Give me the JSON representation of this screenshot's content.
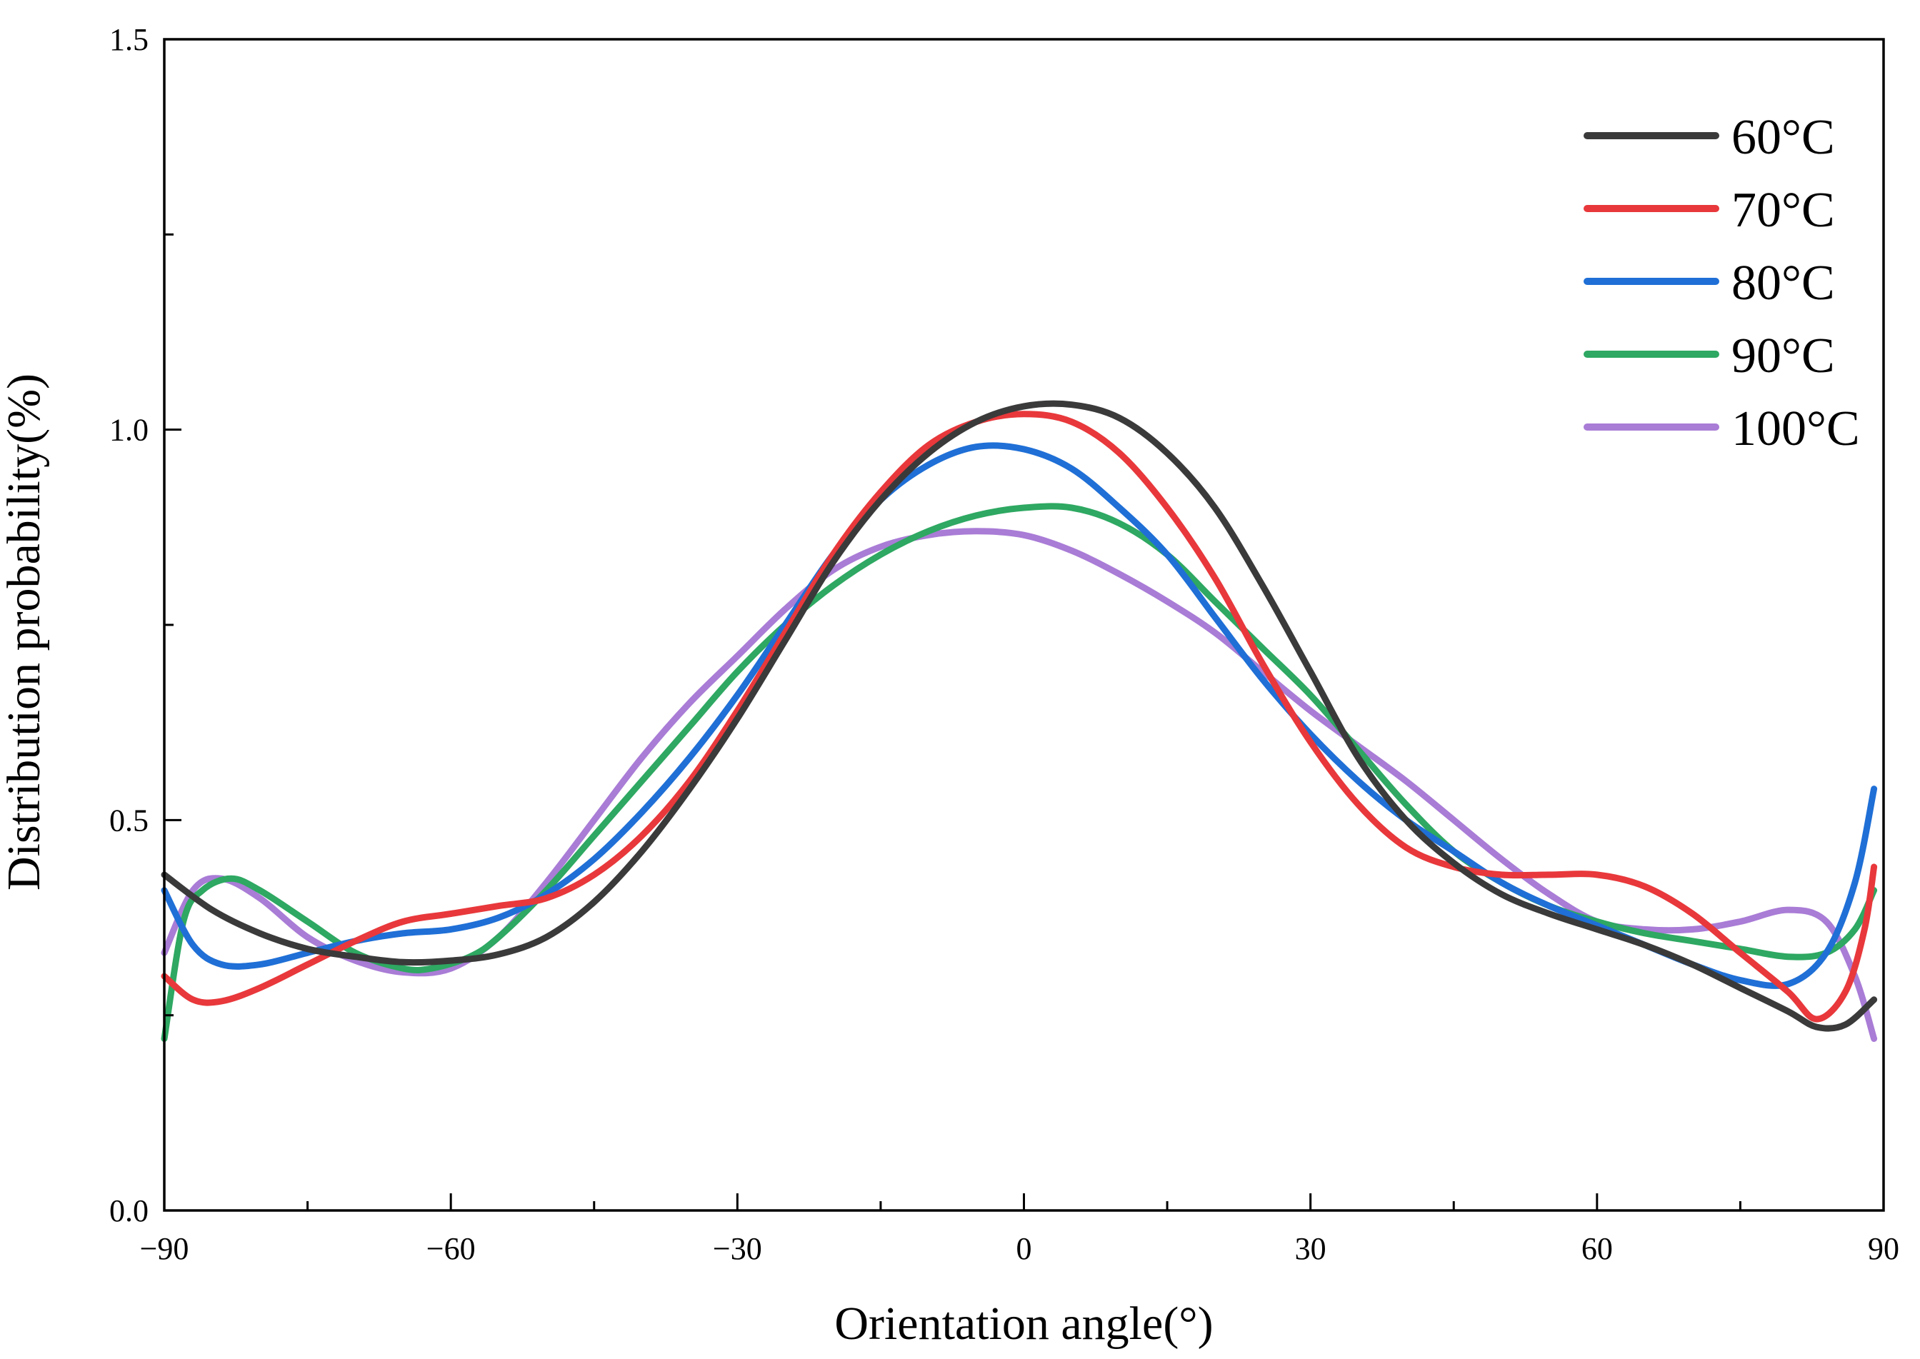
{
  "chart_data": {
    "type": "line",
    "title": "",
    "xlabel": "Orientation angle(°)",
    "ylabel": "Distribution probability(%)",
    "xlim": [
      -90,
      90
    ],
    "ylim": [
      0,
      1.5
    ],
    "x_ticks": [
      -90,
      -60,
      -30,
      0,
      30,
      60,
      90
    ],
    "x_tick_labels": [
      "−90",
      "−60",
      "−30",
      "0",
      "30",
      "60",
      "90"
    ],
    "y_ticks": [
      0,
      0.5,
      1.0,
      1.5
    ],
    "y_tick_labels": [
      "0.0",
      "0.5",
      "1.0",
      "1.5"
    ],
    "x_minor_step": 15,
    "y_minor_step": 0.25,
    "grid": false,
    "legend_position": "top-right",
    "series": [
      {
        "name": "60°C",
        "color": "#3a3a3a",
        "x": [
          -90,
          -85,
          -80,
          -75,
          -70,
          -65,
          -60,
          -55,
          -50,
          -45,
          -40,
          -35,
          -30,
          -25,
          -20,
          -15,
          -10,
          -5,
          0,
          5,
          10,
          15,
          20,
          25,
          30,
          35,
          40,
          45,
          50,
          55,
          60,
          65,
          70,
          75,
          80,
          83,
          86,
          89
        ],
        "values": [
          0.43,
          0.385,
          0.355,
          0.335,
          0.325,
          0.318,
          0.32,
          0.328,
          0.35,
          0.395,
          0.46,
          0.54,
          0.63,
          0.73,
          0.83,
          0.91,
          0.97,
          1.01,
          1.03,
          1.032,
          1.015,
          0.97,
          0.9,
          0.8,
          0.69,
          0.58,
          0.5,
          0.445,
          0.405,
          0.38,
          0.36,
          0.34,
          0.315,
          0.285,
          0.255,
          0.235,
          0.238,
          0.27
        ]
      },
      {
        "name": "70°C",
        "color": "#e8383b",
        "x": [
          -90,
          -87,
          -84,
          -80,
          -75,
          -70,
          -65,
          -60,
          -55,
          -50,
          -45,
          -40,
          -35,
          -30,
          -25,
          -20,
          -15,
          -10,
          -5,
          0,
          5,
          10,
          15,
          20,
          25,
          30,
          35,
          40,
          45,
          50,
          55,
          60,
          65,
          70,
          75,
          80,
          83,
          86,
          88,
          89
        ],
        "values": [
          0.3,
          0.27,
          0.268,
          0.285,
          0.315,
          0.345,
          0.37,
          0.38,
          0.39,
          0.4,
          0.43,
          0.48,
          0.55,
          0.64,
          0.74,
          0.84,
          0.92,
          0.98,
          1.01,
          1.02,
          1.01,
          0.97,
          0.9,
          0.81,
          0.7,
          0.6,
          0.52,
          0.465,
          0.44,
          0.43,
          0.43,
          0.43,
          0.415,
          0.38,
          0.33,
          0.28,
          0.245,
          0.28,
          0.36,
          0.44
        ]
      },
      {
        "name": "80°C",
        "color": "#1f6fd6",
        "x": [
          -90,
          -87,
          -84,
          -80,
          -75,
          -70,
          -65,
          -60,
          -55,
          -50,
          -45,
          -40,
          -35,
          -30,
          -25,
          -20,
          -15,
          -10,
          -5,
          0,
          5,
          10,
          15,
          20,
          25,
          30,
          35,
          40,
          45,
          50,
          55,
          60,
          65,
          70,
          75,
          80,
          84,
          87,
          89
        ],
        "values": [
          0.41,
          0.34,
          0.315,
          0.315,
          0.33,
          0.345,
          0.355,
          0.36,
          0.375,
          0.405,
          0.45,
          0.51,
          0.58,
          0.66,
          0.75,
          0.84,
          0.91,
          0.955,
          0.978,
          0.975,
          0.95,
          0.9,
          0.84,
          0.76,
          0.68,
          0.61,
          0.55,
          0.5,
          0.46,
          0.42,
          0.39,
          0.365,
          0.34,
          0.315,
          0.295,
          0.29,
          0.33,
          0.42,
          0.54
        ]
      },
      {
        "name": "90°C",
        "color": "#2ea862",
        "x": [
          -90,
          -88,
          -86,
          -83,
          -80,
          -75,
          -70,
          -65,
          -62,
          -58,
          -55,
          -50,
          -45,
          -40,
          -35,
          -30,
          -25,
          -20,
          -15,
          -10,
          -5,
          0,
          5,
          10,
          15,
          20,
          25,
          30,
          35,
          40,
          45,
          50,
          55,
          60,
          65,
          70,
          75,
          80,
          84,
          87,
          89
        ],
        "values": [
          0.22,
          0.37,
          0.41,
          0.425,
          0.41,
          0.37,
          0.33,
          0.31,
          0.31,
          0.325,
          0.35,
          0.41,
          0.48,
          0.55,
          0.62,
          0.69,
          0.75,
          0.8,
          0.84,
          0.87,
          0.89,
          0.9,
          0.9,
          0.88,
          0.84,
          0.78,
          0.72,
          0.66,
          0.59,
          0.52,
          0.46,
          0.42,
          0.39,
          0.37,
          0.355,
          0.345,
          0.335,
          0.325,
          0.33,
          0.36,
          0.41
        ]
      },
      {
        "name": "100°C",
        "color": "#a97cd6",
        "x": [
          -90,
          -87,
          -84,
          -80,
          -75,
          -70,
          -65,
          -60,
          -55,
          -50,
          -45,
          -40,
          -35,
          -30,
          -25,
          -20,
          -15,
          -10,
          -5,
          0,
          5,
          10,
          15,
          20,
          25,
          30,
          35,
          40,
          45,
          50,
          55,
          60,
          65,
          70,
          75,
          80,
          84,
          87,
          89
        ],
        "values": [
          0.33,
          0.41,
          0.425,
          0.4,
          0.35,
          0.32,
          0.305,
          0.31,
          0.35,
          0.42,
          0.5,
          0.58,
          0.65,
          0.71,
          0.77,
          0.82,
          0.85,
          0.865,
          0.87,
          0.865,
          0.845,
          0.815,
          0.78,
          0.74,
          0.69,
          0.64,
          0.595,
          0.55,
          0.5,
          0.45,
          0.405,
          0.37,
          0.36,
          0.36,
          0.37,
          0.385,
          0.37,
          0.3,
          0.22
        ]
      }
    ]
  }
}
